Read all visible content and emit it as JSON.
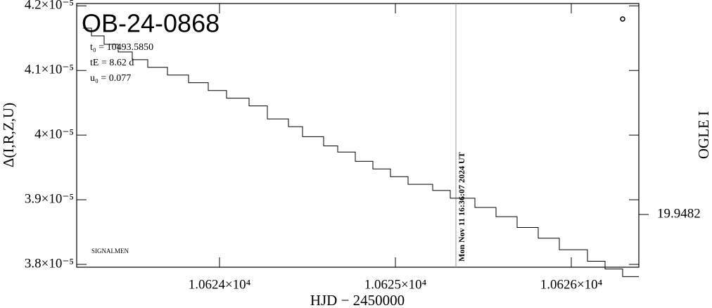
{
  "chart_data": {
    "type": "line",
    "title": "OB-24-0868",
    "params": [
      "t₀ = 10493.5850",
      "tE = 8.62 d",
      "u₀ = 0.077"
    ],
    "credit": "SIGNALMEN",
    "x_label": "HJD − 2450000",
    "y_label": "Δ(I,R,Z,U)",
    "y2_label": "OGLE I",
    "xlim": [
      10623.188,
      10626.384
    ],
    "ylim": [
      3.7956e-05,
      4.2036e-05
    ],
    "y2lim": [
      19.9483,
      19.9478
    ],
    "xticks": [
      {
        "value": 10624,
        "label": "1.0624×10⁴"
      },
      {
        "value": 10625,
        "label": "1.0625×10⁴"
      },
      {
        "value": 10626,
        "label": "1.0626×10⁴"
      }
    ],
    "yticks": [
      {
        "value": 3.8e-05,
        "label": "3.8×10⁻⁵"
      },
      {
        "value": 3.9e-05,
        "label": "3.9×10⁻⁵"
      },
      {
        "value": 4e-05,
        "label": "4×10⁻⁵"
      },
      {
        "value": 4.1e-05,
        "label": "4.1×10⁻⁵"
      },
      {
        "value": 4.2e-05,
        "label": "4.2×10⁻⁵"
      }
    ],
    "y2ticks": [
      19.9482
    ],
    "annotations": [
      {
        "text": "Mon Nov 11 16:36:07 2024 UT",
        "x": 10625.344,
        "color": "#999999"
      }
    ],
    "series": [
      {
        "color": "#000000",
        "x": [
          10623.224,
          10623.272,
          10623.272,
          10623.344,
          10623.344,
          10623.424,
          10623.424,
          10623.504,
          10623.504,
          10623.592,
          10623.592,
          10623.704,
          10623.704,
          10623.824,
          10623.824,
          10623.936,
          10623.936,
          10624.04,
          10624.04,
          10624.168,
          10624.168,
          10624.272,
          10624.272,
          10624.392,
          10624.392,
          10624.472,
          10624.472,
          10624.592,
          10624.592,
          10624.672,
          10624.672,
          10624.772,
          10624.772,
          10624.872,
          10624.872,
          10624.972,
          10624.972,
          10625.072,
          10625.072,
          10625.212,
          10625.212,
          10625.312,
          10625.312,
          10625.452,
          10625.452,
          10625.572,
          10625.572,
          10625.692,
          10625.692,
          10625.812,
          10625.812,
          10625.932,
          10625.932,
          10626.092,
          10626.092,
          10626.192,
          10626.192,
          10626.292,
          10626.292,
          10626.384
        ],
        "values": [
          4.1655e-05,
          4.1655e-05,
          4.1536e-05,
          4.1536e-05,
          4.1405e-05,
          4.1405e-05,
          4.1286e-05,
          4.1286e-05,
          4.1167e-05,
          4.1167e-05,
          4.1048e-05,
          4.1048e-05,
          4.0929e-05,
          4.0929e-05,
          4.081e-05,
          4.081e-05,
          4.069e-05,
          4.069e-05,
          4.0571e-05,
          4.0571e-05,
          4.0452e-05,
          4.0452e-05,
          4.025e-05,
          4.025e-05,
          4.0131e-05,
          4.0131e-05,
          3.9976e-05,
          3.9976e-05,
          3.9833e-05,
          3.9833e-05,
          3.9738e-05,
          3.9738e-05,
          3.9595e-05,
          3.9595e-05,
          3.9476e-05,
          3.9476e-05,
          3.9357e-05,
          3.9357e-05,
          3.9238e-05,
          3.9238e-05,
          3.9143e-05,
          3.9143e-05,
          3.9024e-05,
          3.9024e-05,
          3.8881e-05,
          3.8881e-05,
          3.8738e-05,
          3.8738e-05,
          3.8571e-05,
          3.8571e-05,
          3.8405e-05,
          3.8405e-05,
          3.8226e-05,
          3.8226e-05,
          3.8048e-05,
          3.8048e-05,
          3.7929e-05,
          3.7929e-05,
          3.781e-05,
          3.781e-05
        ]
      }
    ]
  }
}
